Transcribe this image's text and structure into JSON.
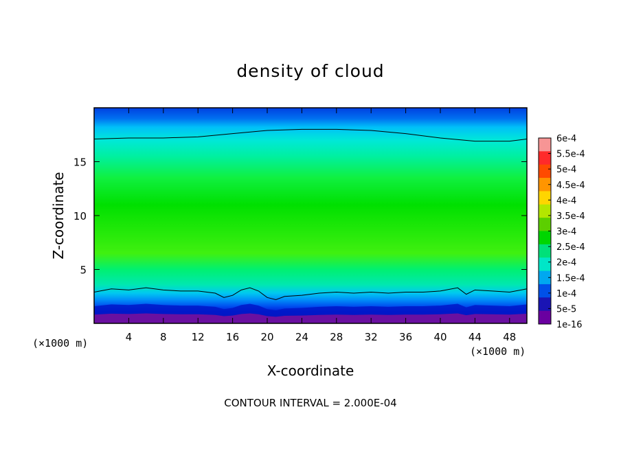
{
  "chart_data": {
    "type": "heatmap",
    "title": "density of cloud",
    "xlabel": "X-coordinate",
    "ylabel": "Z-coordinate",
    "x_unit_label": "(×1000 m)",
    "y_unit_label": "(×1000 m)",
    "xlim": [
      0,
      50
    ],
    "ylim": [
      0,
      20
    ],
    "x_ticks": [
      4,
      8,
      12,
      16,
      20,
      24,
      28,
      32,
      36,
      40,
      44,
      48
    ],
    "y_ticks": [
      5,
      10,
      15
    ],
    "contour_note": "CONTOUR INTERVAL = 2.000E-04",
    "colorbar": {
      "labels": [
        "6e-4",
        "5.5e-4",
        "5e-4",
        "4.5e-4",
        "4e-4",
        "3.5e-4",
        "3e-4",
        "2.5e-4",
        "2e-4",
        "1.5e-4",
        "1e-4",
        "5e-5",
        "1e-16"
      ],
      "colors": [
        "#f79595",
        "#ff2a2a",
        "#ff4b00",
        "#ff9500",
        "#ffd500",
        "#b4e600",
        "#5ccf00",
        "#00d600",
        "#00e07a",
        "#00e6c8",
        "#00a8f0",
        "#0050e8",
        "#1a14b4",
        "#6a00a0"
      ]
    },
    "z_levels": [
      0.0,
      0.6,
      1.1,
      1.6,
      2.2,
      2.8,
      3.6,
      5.0,
      6.5,
      11.0,
      13.5,
      15.5,
      17.0,
      18.2,
      19.0,
      20.0
    ],
    "z_colors": [
      "#6a10a0",
      "#1a10a8",
      "#0020d8",
      "#0050f0",
      "#0090f8",
      "#00c8f0",
      "#00e8b0",
      "#00f070",
      "#40f010",
      "#00e000",
      "#10f040",
      "#00f0a0",
      "#00e8d8",
      "#00c0f8",
      "#0070f0",
      "#0040e0"
    ],
    "contour_lines": [
      {
        "level": "2e-4",
        "x": [
          0,
          4,
          8,
          12,
          16,
          20,
          24,
          28,
          32,
          36,
          40,
          44,
          48,
          50
        ],
        "z": [
          17.1,
          17.2,
          17.2,
          17.3,
          17.6,
          17.9,
          18.0,
          18.0,
          17.9,
          17.6,
          17.2,
          16.9,
          16.9,
          17.1
        ]
      },
      {
        "level": "1e-4",
        "x": [
          0,
          2,
          4,
          6,
          8,
          10,
          12,
          14,
          15,
          16,
          17,
          18,
          19,
          20,
          21,
          22,
          24,
          26,
          28,
          30,
          32,
          34,
          36,
          38,
          40,
          42,
          43,
          44,
          46,
          48,
          50
        ],
        "z": [
          2.9,
          3.2,
          3.1,
          3.3,
          3.1,
          3.0,
          3.0,
          2.8,
          2.4,
          2.6,
          3.1,
          3.3,
          3.0,
          2.4,
          2.2,
          2.5,
          2.6,
          2.8,
          2.9,
          2.8,
          2.9,
          2.8,
          2.9,
          2.9,
          3.0,
          3.3,
          2.7,
          3.1,
          3.0,
          2.9,
          3.2
        ]
      }
    ]
  }
}
